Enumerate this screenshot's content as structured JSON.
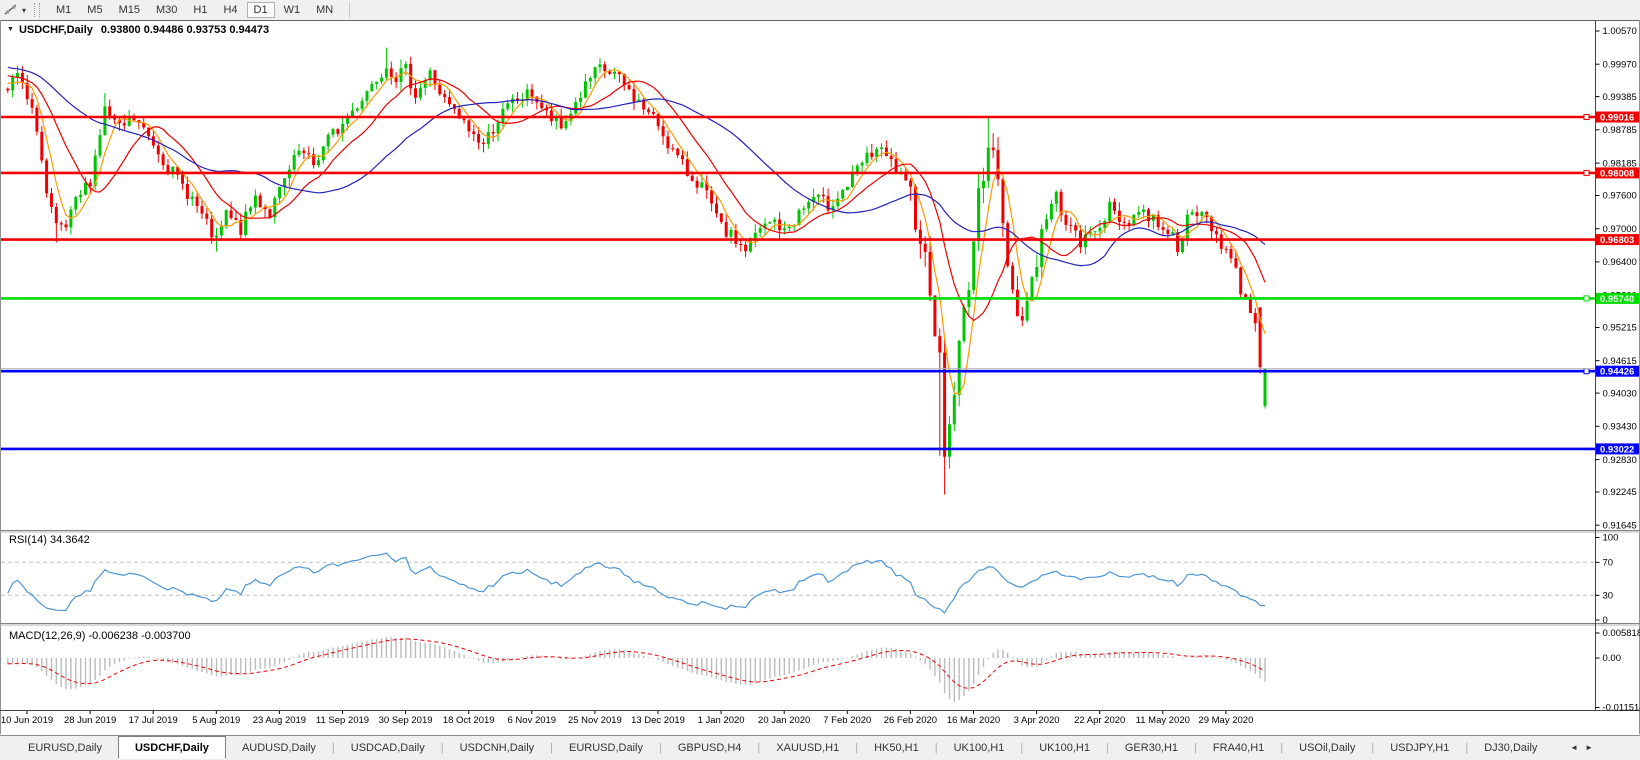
{
  "toolbar": {
    "timeframes": [
      "M1",
      "M5",
      "M15",
      "M30",
      "H1",
      "H4",
      "D1",
      "W1",
      "MN"
    ],
    "active_timeframe": "D1",
    "tool_icon": "line-studies-icon"
  },
  "chart_header": {
    "dropdown_icon": "chevron-down-icon",
    "symbol_title": "USDCHF,Daily",
    "ohlc_text": "0.93800 0.94486 0.93753 0.94473"
  },
  "chart_data": {
    "type": "candlestick",
    "symbol": "USDCHF",
    "timeframe": "Daily",
    "open": "0.93800",
    "high": "0.94486",
    "low": "0.93753",
    "close": "0.94473",
    "candle_up_color": "#00C400",
    "candle_down_color": "#F00000",
    "price_axis_ticks": [
      "1.00570",
      "0.99970",
      "0.99385",
      "0.98785",
      "0.98185",
      "0.97600",
      "0.97000",
      "0.96400",
      "0.95800",
      "0.95215",
      "0.94615",
      "0.94030",
      "0.93430",
      "0.92830",
      "0.92245",
      "0.91645"
    ],
    "date_axis_labels": [
      "10 Jun 2019",
      "28 Jun 2019",
      "17 Jul 2019",
      "5 Aug 2019",
      "23 Aug 2019",
      "11 Sep 2019",
      "30 Sep 2019",
      "18 Oct 2019",
      "6 Nov 2019",
      "25 Nov 2019",
      "13 Dec 2019",
      "1 Jan 2020",
      "20 Jan 2020",
      "7 Feb 2020",
      "26 Feb 2020",
      "16 Mar 2020",
      "3 Apr 2020",
      "22 Apr 2020",
      "11 May 2020",
      "29 May 2020"
    ],
    "horizontal_lines": [
      {
        "price": 0.99016,
        "label": "0.99016",
        "color": "#F00000",
        "handle": true
      },
      {
        "price": 0.98008,
        "label": "0.98008",
        "color": "#F00000",
        "handle": true
      },
      {
        "price": 0.96803,
        "label": "0.96803",
        "color": "#F00000",
        "handle": false
      },
      {
        "price": 0.9574,
        "label": "0.95740",
        "color": "#00DD00",
        "handle": true
      },
      {
        "price": 0.94426,
        "label": "0.94426",
        "color": "#0000FF",
        "handle": true
      },
      {
        "price": 0.93022,
        "label": "0.93022",
        "color": "#0000FF",
        "handle": false
      }
    ],
    "last_price": 0.94473,
    "moving_averages": [
      {
        "period": 5,
        "color": "#FF9900"
      },
      {
        "period": 13,
        "color": "#F00000"
      },
      {
        "period": 34,
        "color": "#2222BB"
      }
    ],
    "price_waypoints": [
      [
        0,
        0.9945
      ],
      [
        2,
        0.998
      ],
      [
        4,
        0.993
      ],
      [
        6,
        0.9885
      ],
      [
        8,
        0.976
      ],
      [
        10,
        0.9698
      ],
      [
        12,
        0.97
      ],
      [
        14,
        0.9745
      ],
      [
        17,
        0.979
      ],
      [
        20,
        0.9915
      ],
      [
        23,
        0.9878
      ],
      [
        26,
        0.9898
      ],
      [
        30,
        0.9855
      ],
      [
        34,
        0.98
      ],
      [
        38,
        0.9755
      ],
      [
        41,
        0.9705
      ],
      [
        43,
        0.9675
      ],
      [
        45,
        0.9725
      ],
      [
        48,
        0.9698
      ],
      [
        51,
        0.9758
      ],
      [
        54,
        0.9728
      ],
      [
        57,
        0.9785
      ],
      [
        60,
        0.9838
      ],
      [
        63,
        0.9815
      ],
      [
        66,
        0.9862
      ],
      [
        69,
        0.9888
      ],
      [
        72,
        0.9925
      ],
      [
        75,
        0.9962
      ],
      [
        78,
        0.9998
      ],
      [
        80,
        0.9975
      ],
      [
        82,
        0.9985
      ],
      [
        84,
        0.9945
      ],
      [
        87,
        0.998
      ],
      [
        90,
        0.993
      ],
      [
        93,
        0.9898
      ],
      [
        95,
        0.9878
      ],
      [
        98,
        0.9852
      ],
      [
        101,
        0.9898
      ],
      [
        104,
        0.9928
      ],
      [
        108,
        0.9945
      ],
      [
        111,
        0.9905
      ],
      [
        114,
        0.988
      ],
      [
        117,
        0.9928
      ],
      [
        120,
        0.997
      ],
      [
        122,
        0.9988
      ],
      [
        125,
        0.9978
      ],
      [
        128,
        0.9948
      ],
      [
        131,
        0.9918
      ],
      [
        134,
        0.9888
      ],
      [
        137,
        0.984
      ],
      [
        140,
        0.98
      ],
      [
        143,
        0.9778
      ],
      [
        145,
        0.9738
      ],
      [
        147,
        0.97
      ],
      [
        150,
        0.9678
      ],
      [
        152,
        0.9662
      ],
      [
        155,
        0.9698
      ],
      [
        158,
        0.9714
      ],
      [
        160,
        0.9692
      ],
      [
        163,
        0.9728
      ],
      [
        166,
        0.9756
      ],
      [
        169,
        0.9742
      ],
      [
        173,
        0.9778
      ],
      [
        176,
        0.9818
      ],
      [
        179,
        0.9844
      ],
      [
        182,
        0.9818
      ],
      [
        184,
        0.9792
      ],
      [
        186,
        0.9758
      ],
      [
        188,
        0.969
      ],
      [
        190,
        0.96
      ],
      [
        192,
        0.9455
      ],
      [
        193,
        0.93
      ],
      [
        194,
        0.9342
      ],
      [
        196,
        0.9482
      ],
      [
        198,
        0.9612
      ],
      [
        200,
        0.9748
      ],
      [
        202,
        0.9868
      ],
      [
        203,
        0.9848
      ],
      [
        205,
        0.97
      ],
      [
        207,
        0.959
      ],
      [
        209,
        0.9535
      ],
      [
        212,
        0.9648
      ],
      [
        214,
        0.9722
      ],
      [
        216,
        0.9758
      ],
      [
        218,
        0.9715
      ],
      [
        221,
        0.9672
      ],
      [
        224,
        0.97
      ],
      [
        227,
        0.9736
      ],
      [
        230,
        0.971
      ],
      [
        233,
        0.9732
      ],
      [
        236,
        0.9718
      ],
      [
        239,
        0.9698
      ],
      [
        241,
        0.967
      ],
      [
        243,
        0.9714
      ],
      [
        246,
        0.9728
      ],
      [
        248,
        0.9704
      ],
      [
        251,
        0.966
      ],
      [
        253,
        0.9618
      ],
      [
        255,
        0.9574
      ],
      [
        256,
        0.9552
      ],
      [
        257,
        0.9544
      ],
      [
        258,
        0.945
      ],
      [
        259,
        0.9447
      ]
    ],
    "candle_overrides": [
      {
        "d": 259,
        "open": 0.938,
        "high": 0.94486,
        "low": 0.93753,
        "close": 0.94473
      },
      {
        "d": 258,
        "open": 0.9558,
        "close": 0.945,
        "low": 0.9438
      },
      {
        "d": 193,
        "low": 0.922
      },
      {
        "d": 192,
        "low": 0.929
      },
      {
        "d": 43,
        "low": 0.9659
      },
      {
        "d": 10,
        "low": 0.9675
      },
      {
        "d": 202,
        "high": 0.9901
      },
      {
        "d": 78,
        "high": 1.0027
      },
      {
        "d": 122,
        "high": 1.0008
      },
      {
        "d": 20,
        "high": 0.9945
      }
    ],
    "rsi": {
      "label": "RSI(14) 34.3642",
      "period": 14,
      "value": 34.3642,
      "levels": [
        70,
        30
      ],
      "axis_ticks": [
        "100",
        "70",
        "30",
        "0"
      ],
      "color": "#4C94D4",
      "level_color": "#C0C0C0"
    },
    "macd": {
      "label": "MACD(12,26,9) -0.006238 -0.003700",
      "fast": 12,
      "slow": 26,
      "signal_period": 9,
      "value": -0.006238,
      "signal_value": -0.0037,
      "axis_ticks": [
        "0.005818",
        "0.00",
        "-0.011514"
      ],
      "histogram_color": "#BBBBBB",
      "signal_color": "#F00000"
    }
  },
  "tab_bar": {
    "tabs": [
      "EURUSD,Daily",
      "USDCHF,Daily",
      "AUDUSD,Daily",
      "USDCAD,Daily",
      "USDCNH,Daily",
      "EURUSD,Daily",
      "GBPUSD,H4",
      "XAUUSD,H1",
      "HK50,H1",
      "UK100,H1",
      "UK100,H1",
      "GER30,H1",
      "FRA40,H1",
      "USOil,Daily",
      "USDJPY,H1",
      "DJ30,Daily"
    ],
    "active_index": 1,
    "scroll_left_icon": "◄",
    "scroll_right_icon": "►"
  }
}
